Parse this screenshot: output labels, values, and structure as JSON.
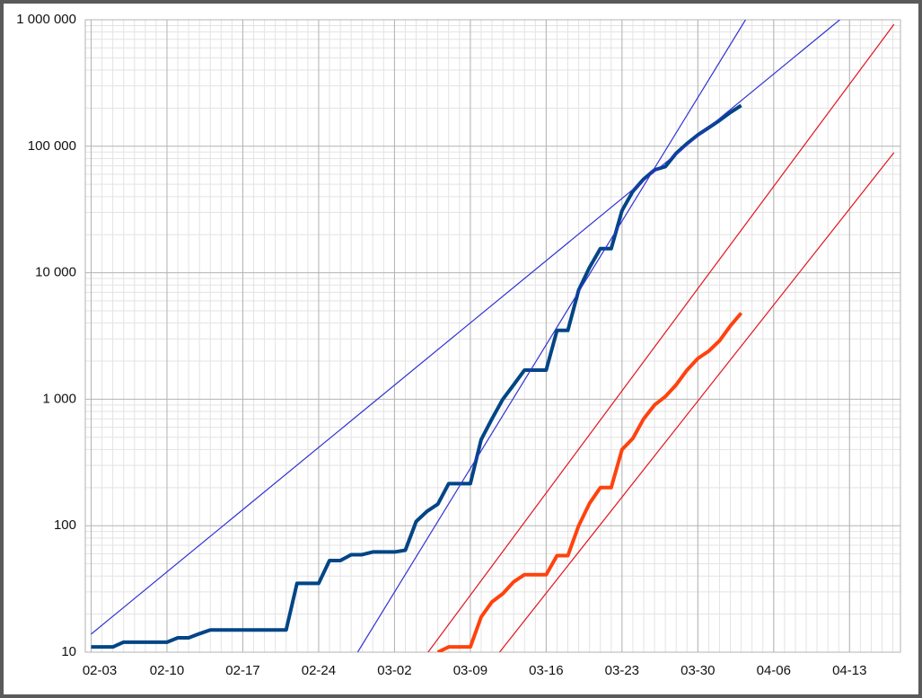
{
  "chart_data": {
    "type": "line",
    "y_scale": "log",
    "grid": true,
    "minor_grid": true,
    "x": [
      0,
      1,
      2,
      3,
      4,
      5,
      6,
      7,
      8,
      9,
      10,
      11,
      12,
      13,
      14,
      15,
      16,
      17,
      18,
      19,
      20,
      21,
      22,
      23,
      24,
      25,
      26,
      27,
      28,
      29,
      30,
      31,
      32,
      33,
      34,
      35,
      36,
      37,
      38,
      39,
      40,
      41,
      42,
      43,
      44,
      45,
      46,
      47,
      48,
      49,
      50,
      51,
      52,
      53,
      54,
      55,
      56,
      57,
      58,
      59,
      60
    ],
    "xlim": [
      -0.54,
      74.7
    ],
    "xticks": [
      {
        "value": 0,
        "label": "02-03"
      },
      {
        "value": 7,
        "label": "02-10"
      },
      {
        "value": 14,
        "label": "02-17"
      },
      {
        "value": 21,
        "label": "02-24"
      },
      {
        "value": 28,
        "label": "03-02"
      },
      {
        "value": 35,
        "label": "03-09"
      },
      {
        "value": 42,
        "label": "03-16"
      },
      {
        "value": 49,
        "label": "03-23"
      },
      {
        "value": 56,
        "label": "03-30"
      },
      {
        "value": 63,
        "label": "04-06"
      },
      {
        "value": 70,
        "label": "04-13"
      }
    ],
    "ylim": [
      10,
      1000000
    ],
    "yticks": [
      10,
      100,
      {
        "value": 1000,
        "label": "1 000"
      },
      {
        "value": 10000,
        "label": "10 000"
      },
      {
        "value": 100000,
        "label": "100 000"
      },
      {
        "value": 1000000,
        "label": "1 000 000"
      }
    ],
    "series": [
      {
        "color": "#004586",
        "width": 4,
        "values": [
          11,
          11,
          11,
          12,
          12,
          12,
          12,
          12,
          13,
          13,
          14,
          15,
          15,
          15,
          15,
          15,
          15,
          15,
          15,
          35,
          35,
          35,
          53,
          53,
          59,
          59,
          62,
          62,
          62,
          64,
          108,
          130,
          148,
          215,
          215,
          215,
          480,
          700,
          1000,
          1300,
          1700,
          1700,
          1700,
          3500,
          3500,
          7300,
          11000,
          15500,
          15500,
          31000,
          44000,
          55000,
          65000,
          69000,
          88000,
          105000,
          123000,
          140000,
          160000,
          185000,
          210000
        ]
      },
      {
        "color": "#ff420e",
        "width": 4,
        "values": [
          null,
          null,
          null,
          null,
          null,
          null,
          null,
          null,
          null,
          null,
          null,
          null,
          null,
          null,
          null,
          null,
          null,
          null,
          null,
          null,
          null,
          null,
          null,
          null,
          null,
          null,
          null,
          null,
          null,
          null,
          null,
          null,
          10,
          11,
          11,
          11,
          19,
          25,
          29,
          36,
          41,
          41,
          41,
          58,
          58,
          100,
          150,
          200,
          200,
          400,
          490,
          700,
          900,
          1050,
          1300,
          1700,
          2100,
          2400,
          2900,
          3800,
          4800
        ]
      },
      {
        "color": "#3232d2",
        "width": 1.2,
        "x": [
          0,
          69.1
        ],
        "values": [
          13.9,
          1000000
        ]
      },
      {
        "color": "#3232d2",
        "width": 1.2,
        "x": [
          24.6,
          60.4
        ],
        "values": [
          10,
          1000000
        ]
      },
      {
        "color": "#e0141e",
        "width": 1.2,
        "x": [
          31.1,
          74.1
        ],
        "values": [
          10,
          920000
        ]
      },
      {
        "color": "#e0141e",
        "width": 1.2,
        "x": [
          37.7,
          74.1
        ],
        "values": [
          10,
          89000
        ]
      }
    ]
  }
}
